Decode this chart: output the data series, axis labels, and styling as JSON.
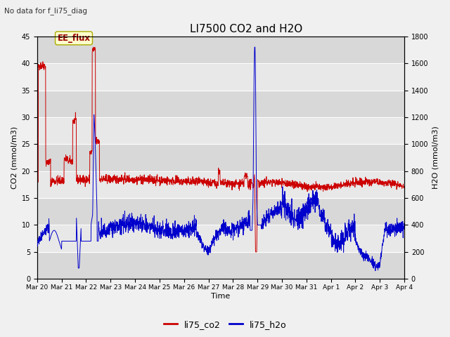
{
  "title": "LI7500 CO2 and H2O",
  "top_left_text": "No data for f_li75_diag",
  "annotation_text": "EE_flux",
  "xlabel": "Time",
  "ylabel_left": "CO2 (mmol/m3)",
  "ylabel_right": "H2O (mmol/m3)",
  "ylim_left": [
    0,
    45
  ],
  "ylim_right": [
    0,
    1800
  ],
  "co2_color": "#cc0000",
  "h2o_color": "#0000cc",
  "annotation_bg": "#ffffcc",
  "annotation_border": "#aaaa00",
  "legend_labels": [
    "li75_co2",
    "li75_h2o"
  ],
  "legend_colors": [
    "#cc0000",
    "#0000cc"
  ],
  "x_tick_labels": [
    "Mar 20",
    "Mar 21",
    "Mar 22",
    "Mar 23",
    "Mar 24",
    "Mar 25",
    "Mar 26",
    "Mar 27",
    "Mar 28",
    "Mar 29",
    "Mar 30",
    "Mar 31",
    "Apr 1",
    "Apr 2",
    "Apr 3",
    "Apr 4"
  ],
  "figsize": [
    6.4,
    4.8
  ],
  "dpi": 100
}
